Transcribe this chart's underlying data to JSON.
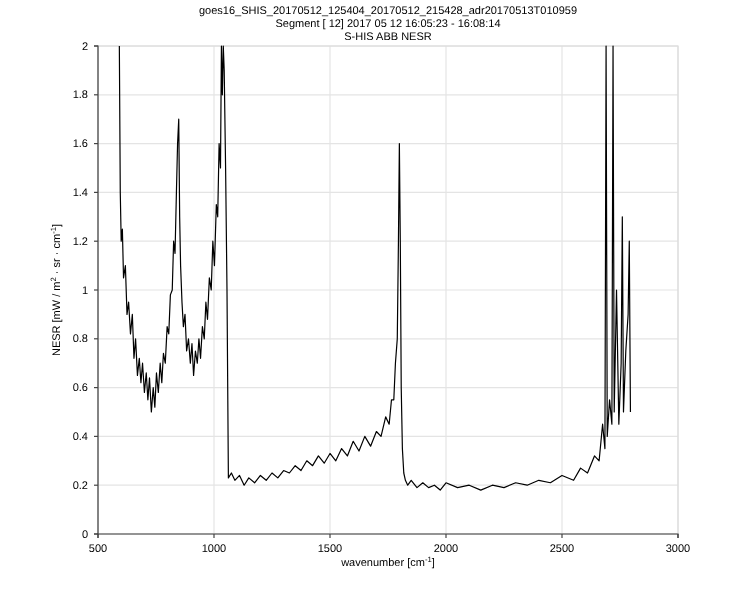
{
  "chart_data": {
    "type": "line",
    "title": "goes16_SHIS_20170512_125404_20170512_215428_adr20170513T010959",
    "subtitle": "Segment [ 12] 2017 05 12 16:05:23 - 16:08:14\nS-HIS ABB NESR",
    "xlabel": "wavenumber [cm$^{-1}$]",
    "ylabel": "NESR [mW / m$^{2}$ · sr · cm$^{-1}$]",
    "xlim": [
      500,
      3000
    ],
    "xticks": [
      500,
      1000,
      1500,
      2000,
      2500,
      3000
    ],
    "ylim": [
      0,
      2
    ],
    "yticks": [
      0,
      0.2,
      0.4,
      0.6,
      0.8,
      1,
      1.2,
      1.4,
      1.6,
      1.8,
      2
    ],
    "grid": true,
    "series": [
      {
        "color": "#000000",
        "x": [
          592,
          596,
          600,
          605,
          610,
          618,
          625,
          632,
          640,
          648,
          655,
          662,
          670,
          678,
          685,
          692,
          700,
          708,
          715,
          722,
          730,
          738,
          745,
          752,
          760,
          768,
          775,
          782,
          790,
          798,
          805,
          812,
          820,
          826,
          832,
          838,
          843,
          848,
          852,
          856,
          862,
          868,
          875,
          882,
          890,
          898,
          905,
          912,
          920,
          928,
          935,
          942,
          950,
          958,
          965,
          972,
          980,
          988,
          995,
          1002,
          1010,
          1016,
          1022,
          1028,
          1032,
          1036,
          1040,
          1044,
          1050,
          1056,
          1062,
          1075,
          1090,
          1110,
          1130,
          1150,
          1175,
          1200,
          1225,
          1250,
          1275,
          1300,
          1325,
          1350,
          1375,
          1400,
          1425,
          1450,
          1475,
          1500,
          1525,
          1550,
          1575,
          1600,
          1625,
          1650,
          1675,
          1700,
          1720,
          1740,
          1755,
          1765,
          1775,
          1782,
          1790,
          1795,
          1799,
          1803,
          1807,
          1812,
          1818,
          1825,
          1835,
          1850,
          1875,
          1900,
          1925,
          1950,
          1975,
          2000,
          2050,
          2100,
          2150,
          2200,
          2250,
          2300,
          2350,
          2400,
          2450,
          2500,
          2550,
          2580,
          2610,
          2640,
          2660,
          2675,
          2685,
          2690,
          2695,
          2705,
          2715,
          2720,
          2725,
          2735,
          2745,
          2755,
          2760,
          2765,
          2775,
          2785,
          2790,
          2795
        ],
        "values": [
          2.0,
          1.4,
          1.2,
          1.25,
          1.05,
          1.1,
          0.9,
          0.95,
          0.82,
          0.9,
          0.72,
          0.8,
          0.65,
          0.72,
          0.62,
          0.7,
          0.58,
          0.66,
          0.55,
          0.64,
          0.5,
          0.6,
          0.52,
          0.66,
          0.58,
          0.7,
          0.62,
          0.74,
          0.7,
          0.85,
          0.82,
          0.98,
          1.0,
          1.2,
          1.15,
          1.4,
          1.6,
          1.7,
          1.3,
          1.1,
          0.95,
          0.85,
          0.9,
          0.75,
          0.8,
          0.7,
          0.78,
          0.65,
          0.75,
          0.7,
          0.8,
          0.72,
          0.85,
          0.8,
          0.95,
          0.88,
          1.05,
          1.0,
          1.2,
          1.1,
          1.35,
          1.3,
          1.6,
          1.5,
          2.0,
          1.8,
          2.0,
          1.9,
          1.5,
          1.0,
          0.23,
          0.25,
          0.22,
          0.24,
          0.2,
          0.23,
          0.21,
          0.24,
          0.22,
          0.25,
          0.23,
          0.26,
          0.25,
          0.28,
          0.26,
          0.3,
          0.28,
          0.32,
          0.29,
          0.33,
          0.3,
          0.35,
          0.32,
          0.38,
          0.34,
          0.4,
          0.36,
          0.42,
          0.4,
          0.48,
          0.45,
          0.55,
          0.55,
          0.7,
          0.8,
          1.2,
          1.6,
          1.2,
          0.6,
          0.35,
          0.25,
          0.22,
          0.2,
          0.22,
          0.19,
          0.21,
          0.19,
          0.2,
          0.18,
          0.21,
          0.19,
          0.2,
          0.18,
          0.2,
          0.19,
          0.21,
          0.2,
          0.22,
          0.21,
          0.24,
          0.22,
          0.27,
          0.25,
          0.32,
          0.3,
          0.45,
          0.35,
          2.0,
          0.4,
          0.55,
          0.45,
          2.0,
          0.5,
          1.0,
          0.45,
          0.7,
          1.3,
          0.5,
          0.75,
          0.9,
          1.2,
          0.5
        ]
      }
    ]
  }
}
